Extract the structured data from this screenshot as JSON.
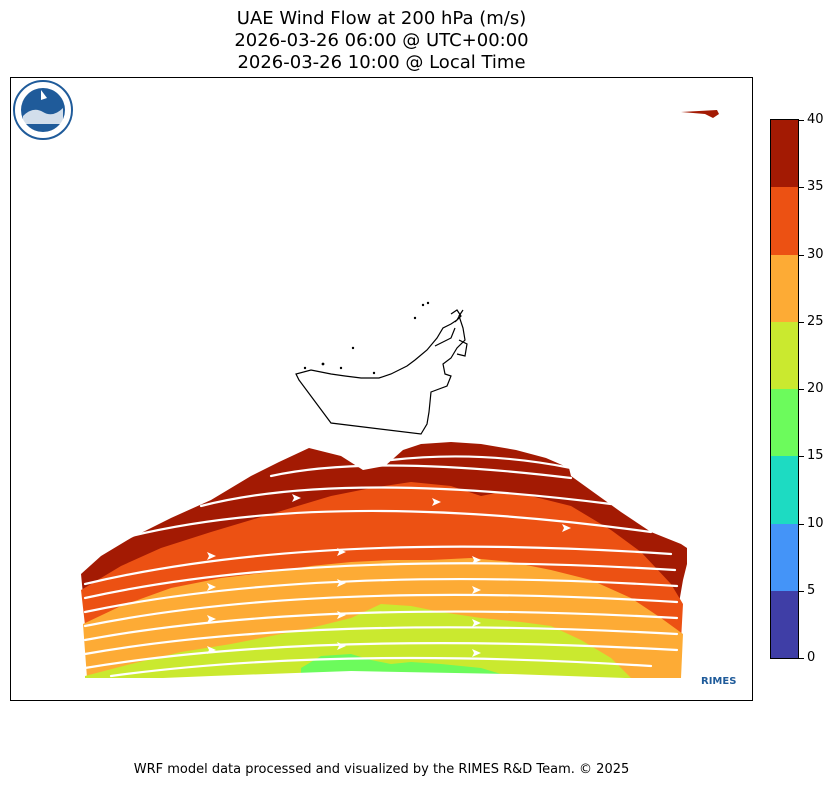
{
  "title": {
    "line1": "UAE Wind Flow at 200 hPa (m/s)",
    "line2": "2026-03-26 06:00 @ UTC+00:00",
    "line3": "2026-03-26 10:00 @ Local Time"
  },
  "colorbar": {
    "ticks": [
      "0",
      "5",
      "10",
      "15",
      "20",
      "25",
      "30",
      "35",
      "40"
    ],
    "bands": [
      {
        "min": 0,
        "max": 5,
        "color": "#3f3ea6"
      },
      {
        "min": 5,
        "max": 10,
        "color": "#4494f8"
      },
      {
        "min": 10,
        "max": 15,
        "color": "#1ddbc2"
      },
      {
        "min": 15,
        "max": 20,
        "color": "#6cfb5c"
      },
      {
        "min": 20,
        "max": 25,
        "color": "#cae92f"
      },
      {
        "min": 25,
        "max": 30,
        "color": "#fdab35"
      },
      {
        "min": 30,
        "max": 35,
        "color": "#ec5113"
      },
      {
        "min": 35,
        "max": 40,
        "color": "#a31a03"
      }
    ]
  },
  "map": {
    "region": "UAE",
    "level": "200 hPa",
    "variable": "Wind speed",
    "units": "m/s",
    "vectors": "streamline arrows",
    "flow_direction": "west to east",
    "outline_color": "#000000",
    "arrow_color": "#ffffff"
  },
  "logo": {
    "text": "RIMES",
    "color": "#1f5b9a"
  },
  "footer": "WRF model data processed and visualized by the RIMES R&D Team. © 2025"
}
